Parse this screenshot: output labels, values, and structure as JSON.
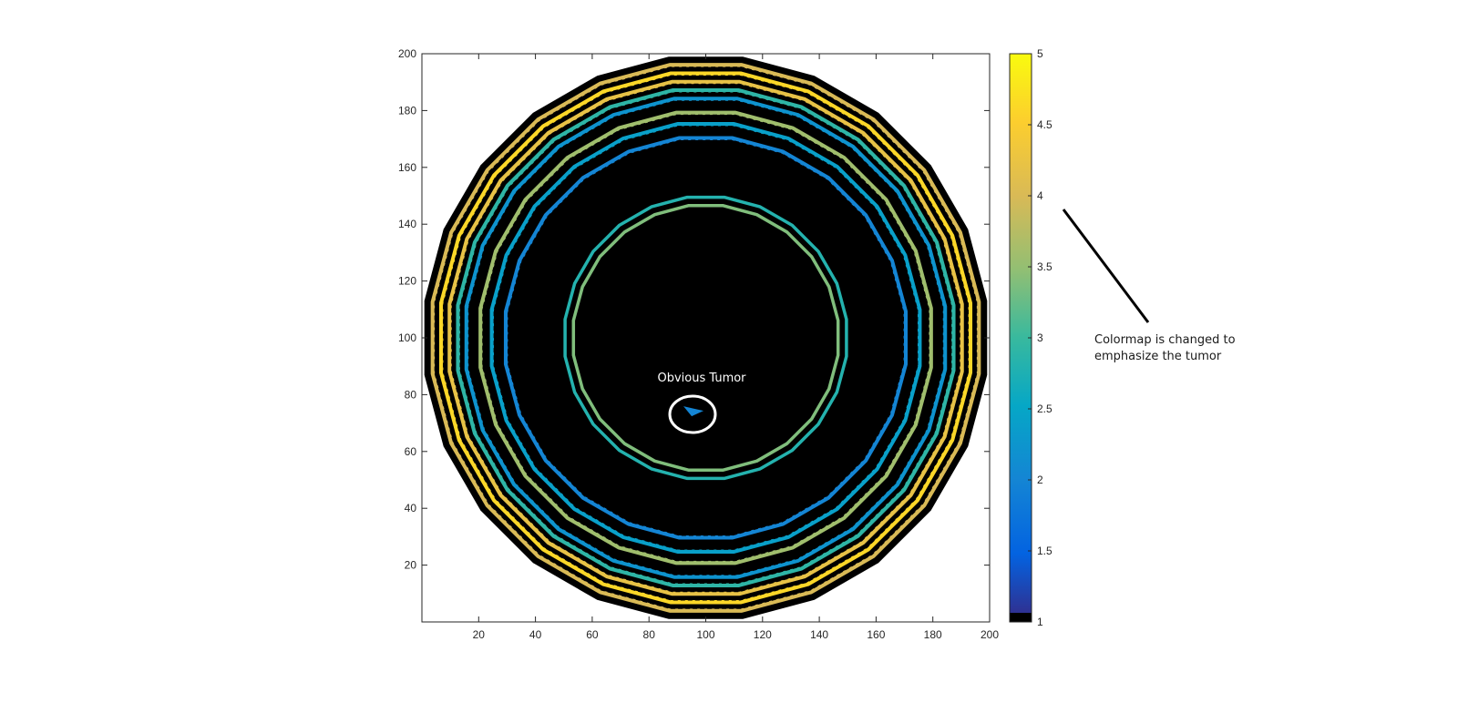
{
  "chart_data": {
    "type": "heatmap",
    "subtype": "filled-contour",
    "title": "",
    "xlabel": "",
    "ylabel": "",
    "xlim": [
      0,
      200
    ],
    "ylim": [
      0,
      200
    ],
    "x_ticks": [
      20,
      40,
      60,
      80,
      100,
      120,
      140,
      160,
      180,
      200
    ],
    "y_ticks": [
      20,
      40,
      60,
      80,
      100,
      120,
      140,
      160,
      180,
      200
    ],
    "grid": false,
    "center": [
      100,
      100
    ],
    "background_color": "#000000",
    "rings": [
      {
        "radius": 97,
        "level": 4.0
      },
      {
        "radius": 94,
        "level": 4.6
      },
      {
        "radius": 91,
        "level": 4.2
      },
      {
        "radius": 88,
        "level": 2.9
      },
      {
        "radius": 85,
        "level": 2.2
      },
      {
        "radius": 80,
        "level": 3.6
      },
      {
        "radius": 76,
        "level": 2.4
      },
      {
        "radius": 71,
        "level": 2.0
      },
      {
        "radius": 50,
        "level": 2.8
      },
      {
        "radius": 47,
        "level": 3.4
      }
    ],
    "tumor": {
      "x": 96,
      "y": 74,
      "level": 2.0
    },
    "colorbar": {
      "min": 1,
      "max": 5,
      "ticks": [
        1,
        1.5,
        2,
        2.5,
        3,
        3.5,
        4,
        4.5,
        5
      ],
      "tick_labels": [
        "1",
        "1.5",
        "2",
        "2.5",
        "3",
        "3.5",
        "4",
        "4.5",
        "5"
      ],
      "low_color": "#000000"
    },
    "annotations": [
      {
        "text": "Obvious Tumor",
        "x": 96,
        "y": 86
      },
      {
        "lines": [
          "Colormap is changed to",
          "emphasize the tumor"
        ]
      }
    ]
  }
}
